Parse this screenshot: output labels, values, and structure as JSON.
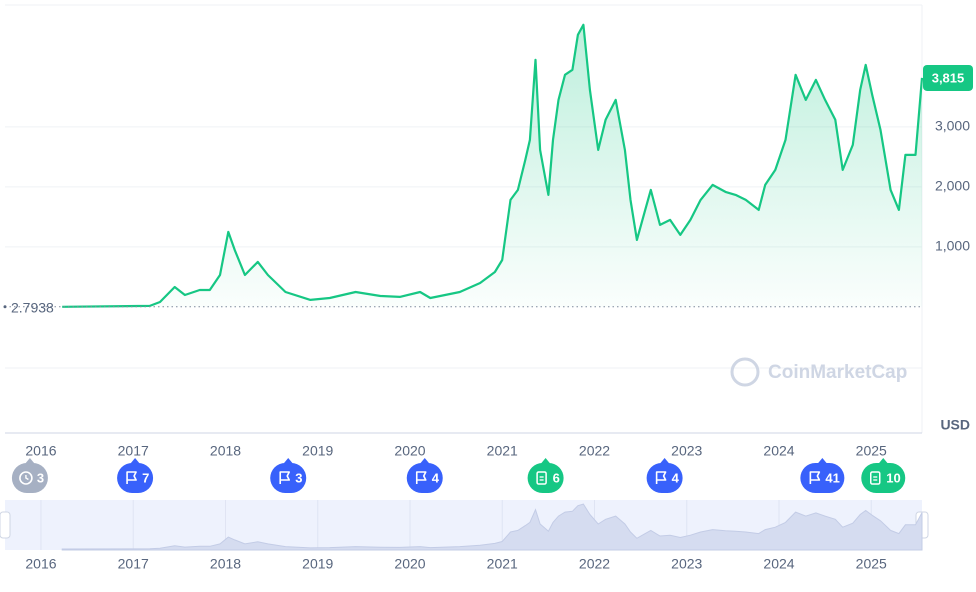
{
  "chart_data": {
    "type": "line",
    "x": [
      2016.23,
      2017.18,
      2017.29,
      2017.45,
      2017.56,
      2017.72,
      2017.83,
      2017.94,
      2018.03,
      2018.1,
      2018.21,
      2018.35,
      2018.46,
      2018.65,
      2018.92,
      2019.13,
      2019.41,
      2019.68,
      2019.89,
      2020.11,
      2020.22,
      2020.54,
      2020.76,
      2020.92,
      2021.0,
      2021.09,
      2021.17,
      2021.25,
      2021.3,
      2021.36,
      2021.41,
      2021.47,
      2021.5,
      2021.55,
      2021.61,
      2021.68,
      2021.76,
      2021.82,
      2021.88,
      2021.95,
      2022.04,
      2022.12,
      2022.23,
      2022.33,
      2022.39,
      2022.46,
      2022.55,
      2022.61,
      2022.71,
      2022.82,
      2022.93,
      2023.04,
      2023.15,
      2023.28,
      2023.42,
      2023.53,
      2023.64,
      2023.78,
      2023.85,
      2023.96,
      2024.07,
      2024.18,
      2024.29,
      2024.4,
      2024.5,
      2024.61,
      2024.69,
      2024.8,
      2024.88,
      2024.94,
      2025.01,
      2025.1,
      2025.21,
      2025.3,
      2025.37,
      2025.48,
      2025.55
    ],
    "series": [
      {
        "name": "USD",
        "color": "#16c784",
        "values": [
          2.7938,
          17,
          83,
          333,
          200,
          283,
          283,
          533,
          1250,
          950,
          533,
          750,
          533,
          250,
          117,
          150,
          250,
          183,
          167,
          250,
          150,
          250,
          400,
          583,
          783,
          1783,
          1950,
          2450,
          2783,
          4117,
          2617,
          2117,
          1867,
          2783,
          3450,
          3867,
          3950,
          4533,
          4700,
          3617,
          2617,
          3117,
          3450,
          2617,
          1783,
          1117,
          1617,
          1950,
          1367,
          1450,
          1200,
          1450,
          1783,
          2033,
          1917,
          1867,
          1783,
          1617,
          2033,
          2283,
          2783,
          3867,
          3450,
          3783,
          3450,
          3117,
          2283,
          2700,
          3617,
          4033,
          3533,
          2950,
          1950,
          1617,
          2533,
          2533,
          3815
        ]
      }
    ],
    "xlim": [
      2015.61,
      2025.55
    ],
    "xticks": [
      2016,
      2017,
      2018,
      2019,
      2020,
      2021,
      2022,
      2023,
      2024,
      2025
    ],
    "ylim": [
      -1050,
      5030
    ],
    "yticks": [
      {
        "value": 1000,
        "label": "1,000"
      },
      {
        "value": 2000,
        "label": "2,000"
      },
      {
        "value": 3000,
        "label": "3,000"
      }
    ],
    "grid": true,
    "start_label": "2.7938",
    "current_label": "3,815",
    "watermark": "CoinMarketCap",
    "events": [
      {
        "x": 2015.88,
        "label": "3",
        "icon": "history",
        "color": "#a6b0c3"
      },
      {
        "x": 2017.02,
        "label": "7",
        "icon": "flag",
        "color": "#3861fb"
      },
      {
        "x": 2018.68,
        "label": "3",
        "icon": "flag",
        "color": "#3861fb"
      },
      {
        "x": 2020.16,
        "label": "4",
        "icon": "flag",
        "color": "#3861fb"
      },
      {
        "x": 2021.47,
        "label": "6",
        "icon": "document",
        "color": "#16c784"
      },
      {
        "x": 2022.76,
        "label": "4",
        "icon": "flag",
        "color": "#3861fb"
      },
      {
        "x": 2024.47,
        "label": "41",
        "icon": "flag",
        "color": "#3861fb"
      },
      {
        "x": 2025.13,
        "label": "10",
        "icon": "document",
        "color": "#16c784"
      }
    ]
  }
}
